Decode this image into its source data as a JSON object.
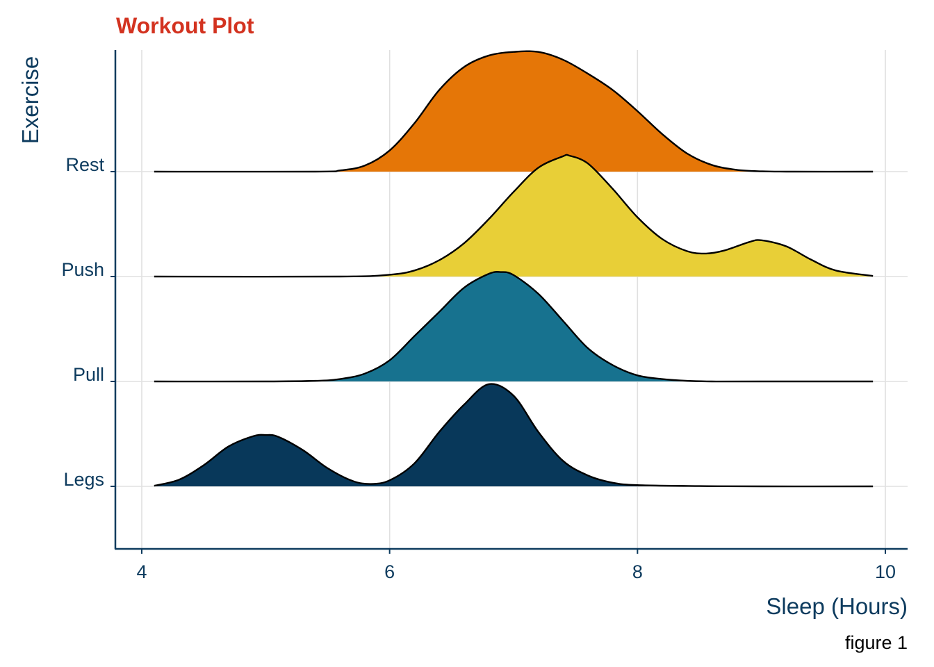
{
  "chart_data": {
    "type": "ridgeline",
    "title": "Workout Plot",
    "xlabel": "Sleep (Hours)",
    "ylabel": "Exercise",
    "caption": "figure 1",
    "xlim": [
      3.8,
      10.2
    ],
    "x_ticks": [
      4,
      6,
      8,
      10
    ],
    "grid": true,
    "colors": {
      "title": "#D33320",
      "axis": "#0D3B5E",
      "grid": "#E0E0E0",
      "outline": "#000000",
      "caption": "#000000"
    },
    "series": [
      {
        "name": "Legs",
        "color": "#08385A",
        "x": [
          4.1,
          4.3,
          4.5,
          4.7,
          4.9,
          5.0,
          5.1,
          5.3,
          5.5,
          5.7,
          5.85,
          6.0,
          6.2,
          6.4,
          6.6,
          6.8,
          7.0,
          7.2,
          7.4,
          7.6,
          7.8,
          8.0,
          8.5,
          9.0,
          9.9
        ],
        "y": [
          0.01,
          0.11,
          0.35,
          0.66,
          0.83,
          0.85,
          0.82,
          0.6,
          0.3,
          0.09,
          0.04,
          0.1,
          0.38,
          0.9,
          1.35,
          1.69,
          1.5,
          0.9,
          0.42,
          0.18,
          0.06,
          0.02,
          0.005,
          0.0,
          0.0
        ]
      },
      {
        "name": "Pull",
        "color": "#17728F",
        "x": [
          4.1,
          5.0,
          5.4,
          5.6,
          5.8,
          6.0,
          6.2,
          6.4,
          6.6,
          6.8,
          6.9,
          7.0,
          7.2,
          7.4,
          7.6,
          7.8,
          8.0,
          8.2,
          8.4,
          8.6,
          9.0,
          9.9
        ],
        "y": [
          0.0,
          0.0,
          0.01,
          0.04,
          0.13,
          0.35,
          0.75,
          1.15,
          1.55,
          1.78,
          1.81,
          1.76,
          1.45,
          1.0,
          0.55,
          0.27,
          0.1,
          0.04,
          0.01,
          0.0,
          0.0,
          0.0
        ]
      },
      {
        "name": "Push",
        "color": "#E8CF37",
        "x": [
          4.1,
          5.6,
          6.0,
          6.2,
          6.4,
          6.6,
          6.8,
          7.0,
          7.2,
          7.4,
          7.45,
          7.6,
          7.8,
          8.0,
          8.2,
          8.4,
          8.55,
          8.7,
          8.9,
          9.0,
          9.2,
          9.4,
          9.6,
          9.9
        ],
        "y": [
          0.0,
          0.0,
          0.03,
          0.1,
          0.27,
          0.55,
          0.95,
          1.4,
          1.8,
          1.99,
          2.0,
          1.87,
          1.45,
          0.98,
          0.62,
          0.42,
          0.38,
          0.43,
          0.57,
          0.6,
          0.5,
          0.28,
          0.1,
          0.01
        ]
      },
      {
        "name": "Rest",
        "color": "#E57607",
        "x": [
          4.1,
          5.4,
          5.6,
          5.8,
          6.0,
          6.2,
          6.4,
          6.6,
          6.8,
          7.0,
          7.2,
          7.4,
          7.6,
          7.8,
          8.0,
          8.2,
          8.4,
          8.6,
          8.8,
          9.0,
          9.2,
          9.9
        ],
        "y": [
          0.0,
          0.0,
          0.02,
          0.1,
          0.35,
          0.8,
          1.35,
          1.73,
          1.92,
          1.98,
          1.98,
          1.85,
          1.62,
          1.35,
          1.0,
          0.62,
          0.3,
          0.11,
          0.03,
          0.005,
          0.0,
          0.0
        ]
      }
    ]
  }
}
